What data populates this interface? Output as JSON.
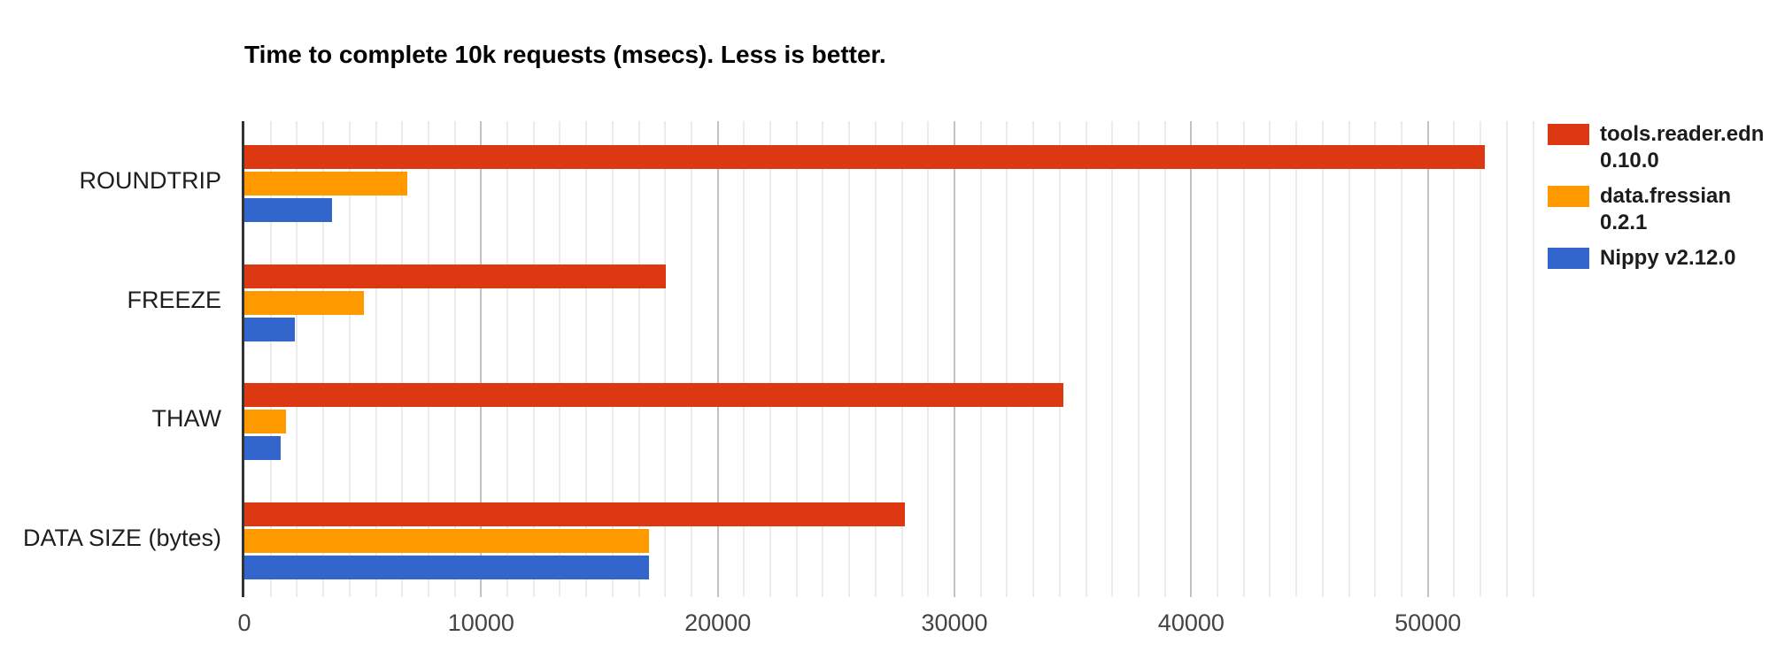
{
  "background": "#ffffff",
  "chart_data": {
    "type": "bar",
    "orientation": "horizontal",
    "title": "Time to complete 10k requests (msecs). Less is better.",
    "xlabel": "",
    "ylabel": "",
    "categories": [
      "ROUNDTRIP",
      "FREEZE",
      "THAW",
      "DATA SIZE (bytes)"
    ],
    "series": [
      {
        "name": "tools.reader.edn 0.10.0",
        "color": "#dc3912",
        "values": [
          52400,
          17800,
          34600,
          27900
        ]
      },
      {
        "name": "data.fressian 0.2.1",
        "color": "#ff9900",
        "values": [
          6900,
          5050,
          1760,
          17100
        ]
      },
      {
        "name": "Nippy v2.12.0",
        "color": "#3366cc",
        "values": [
          3700,
          2130,
          1530,
          17100
        ]
      }
    ],
    "x_ticks": [
      0,
      10000,
      20000,
      30000,
      40000,
      50000
    ],
    "xlim": [
      0,
      54500
    ],
    "grid": true,
    "minor_gridlines_per_major": 9,
    "legend_position": "right"
  },
  "legend": {
    "entries": [
      {
        "lines": [
          "tools.reader.edn",
          "0.10.0"
        ],
        "color": "#dc3912"
      },
      {
        "lines": [
          "data.fressian",
          "0.2.1"
        ],
        "color": "#ff9900"
      },
      {
        "lines": [
          "Nippy v2.12.0"
        ],
        "color": "#3366cc"
      }
    ]
  },
  "axis_colors": {
    "baseline": "#333333",
    "gridline_major": "#c2c2c2",
    "gridline_minor": "#ebebeb",
    "tick_text": "#444444",
    "category_text": "#1d1d1d"
  }
}
